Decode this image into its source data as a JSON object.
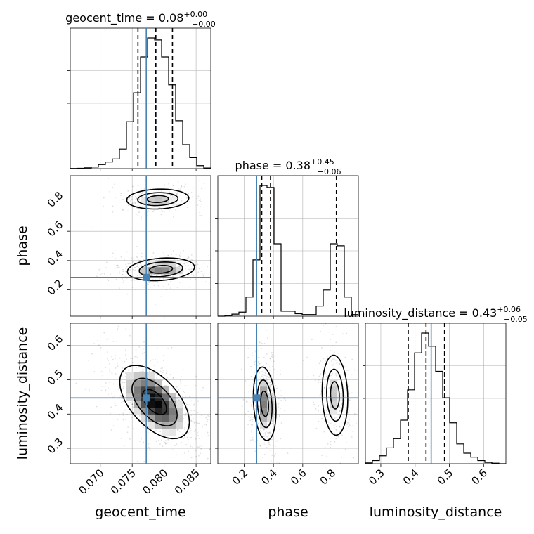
{
  "chart_data": {
    "type": "corner",
    "parameters": [
      "geocent_time",
      "phase",
      "luminosity_distance"
    ],
    "truths": {
      "geocent_time": 0.0772,
      "phase": 0.285,
      "luminosity_distance": 0.447
    },
    "ranges": {
      "geocent_time": [
        0.0653,
        0.0873
      ],
      "phase": [
        0.02,
        0.98
      ],
      "luminosity_distance": [
        0.255,
        0.665
      ]
    },
    "titles": {
      "geocent_time": {
        "text": "geocent_time = 0.08",
        "plus": "+0.00",
        "minus": "−0.00"
      },
      "phase": {
        "text": "phase = 0.38",
        "plus": "+0.45",
        "minus": "−0.06"
      },
      "luminosity_distance": {
        "text": "luminosity_distance = 0.43",
        "plus": "+0.06",
        "minus": "−0.05"
      }
    },
    "quantiles": {
      "geocent_time": [
        0.0759,
        0.0787,
        0.0813
      ],
      "phase": [
        0.32,
        0.38,
        0.83
      ],
      "luminosity_distance": [
        0.38,
        0.432,
        0.486
      ]
    },
    "ticks": {
      "geocent_time": {
        "values": [
          0.07,
          0.075,
          0.08,
          0.085
        ],
        "labels": [
          "0.070",
          "0.075",
          "0.080",
          "0.085"
        ]
      },
      "phase": {
        "values": [
          0.2,
          0.4,
          0.6,
          0.8
        ],
        "labels": [
          "0.2",
          "0.4",
          "0.6",
          "0.8"
        ]
      },
      "luminosity_distance": {
        "values": [
          0.3,
          0.4,
          0.5,
          0.6
        ],
        "labels": [
          "0.3",
          "0.4",
          "0.5",
          "0.6"
        ]
      }
    },
    "histograms": {
      "geocent_time": {
        "edges": [
          0.0653,
          0.0664,
          0.0675,
          0.0686,
          0.0697,
          0.0708,
          0.0719,
          0.073,
          0.0741,
          0.0752,
          0.0763,
          0.0774,
          0.0785,
          0.0796,
          0.0807,
          0.0818,
          0.0829,
          0.084,
          0.0851,
          0.0862,
          0.0873
        ],
        "counts": [
          1,
          2,
          4,
          8,
          20,
          33,
          48,
          98,
          235,
          380,
          560,
          655,
          645,
          560,
          420,
          240,
          120,
          55,
          15,
          3
        ]
      },
      "phase": {
        "edges": [
          0.02,
          0.068,
          0.116,
          0.164,
          0.212,
          0.26,
          0.308,
          0.356,
          0.404,
          0.452,
          0.5,
          0.548,
          0.596,
          0.644,
          0.692,
          0.74,
          0.788,
          0.836,
          0.884,
          0.932,
          0.98
        ],
        "counts": [
          0,
          3,
          10,
          20,
          95,
          280,
          650,
          640,
          360,
          25,
          25,
          12,
          8,
          8,
          50,
          130,
          360,
          350,
          95,
          8
        ]
      },
      "luminosity_distance": {
        "edges": [
          0.255,
          0.2755,
          0.296,
          0.3165,
          0.337,
          0.3575,
          0.378,
          0.3985,
          0.419,
          0.4395,
          0.46,
          0.4805,
          0.501,
          0.5215,
          0.542,
          0.5625,
          0.583,
          0.6035,
          0.624,
          0.6445,
          0.665
        ],
        "counts": [
          3,
          12,
          30,
          60,
          95,
          165,
          280,
          420,
          495,
          445,
          350,
          250,
          155,
          75,
          40,
          25,
          12,
          5,
          2,
          0
        ]
      }
    },
    "hist2d": [
      {
        "x": "geocent_time",
        "y": "phase",
        "modes": [
          {
            "cx": 0.079,
            "cy": 0.82,
            "sx": 0.0025,
            "sy": 0.035,
            "rho": 0.1,
            "weight": 0.4
          },
          {
            "cx": 0.0795,
            "cy": 0.34,
            "sx": 0.0027,
            "sy": 0.04,
            "rho": 0.2,
            "weight": 0.6
          }
        ]
      },
      {
        "x": "geocent_time",
        "y": "luminosity_distance",
        "modes": [
          {
            "cx": 0.0785,
            "cy": 0.435,
            "sx": 0.0028,
            "sy": 0.055,
            "rho": -0.55,
            "weight": 1.0
          }
        ]
      },
      {
        "x": "phase",
        "y": "luminosity_distance",
        "modes": [
          {
            "cx": 0.34,
            "cy": 0.43,
            "sx": 0.04,
            "sy": 0.055,
            "rho": -0.2,
            "weight": 0.62
          },
          {
            "cx": 0.82,
            "cy": 0.455,
            "sx": 0.045,
            "sy": 0.06,
            "rho": -0.1,
            "weight": 0.38
          }
        ]
      }
    ],
    "colors": {
      "truth": "#4682b4",
      "grid": "#b0b0b0",
      "hist": "#000000"
    },
    "grid": true
  }
}
